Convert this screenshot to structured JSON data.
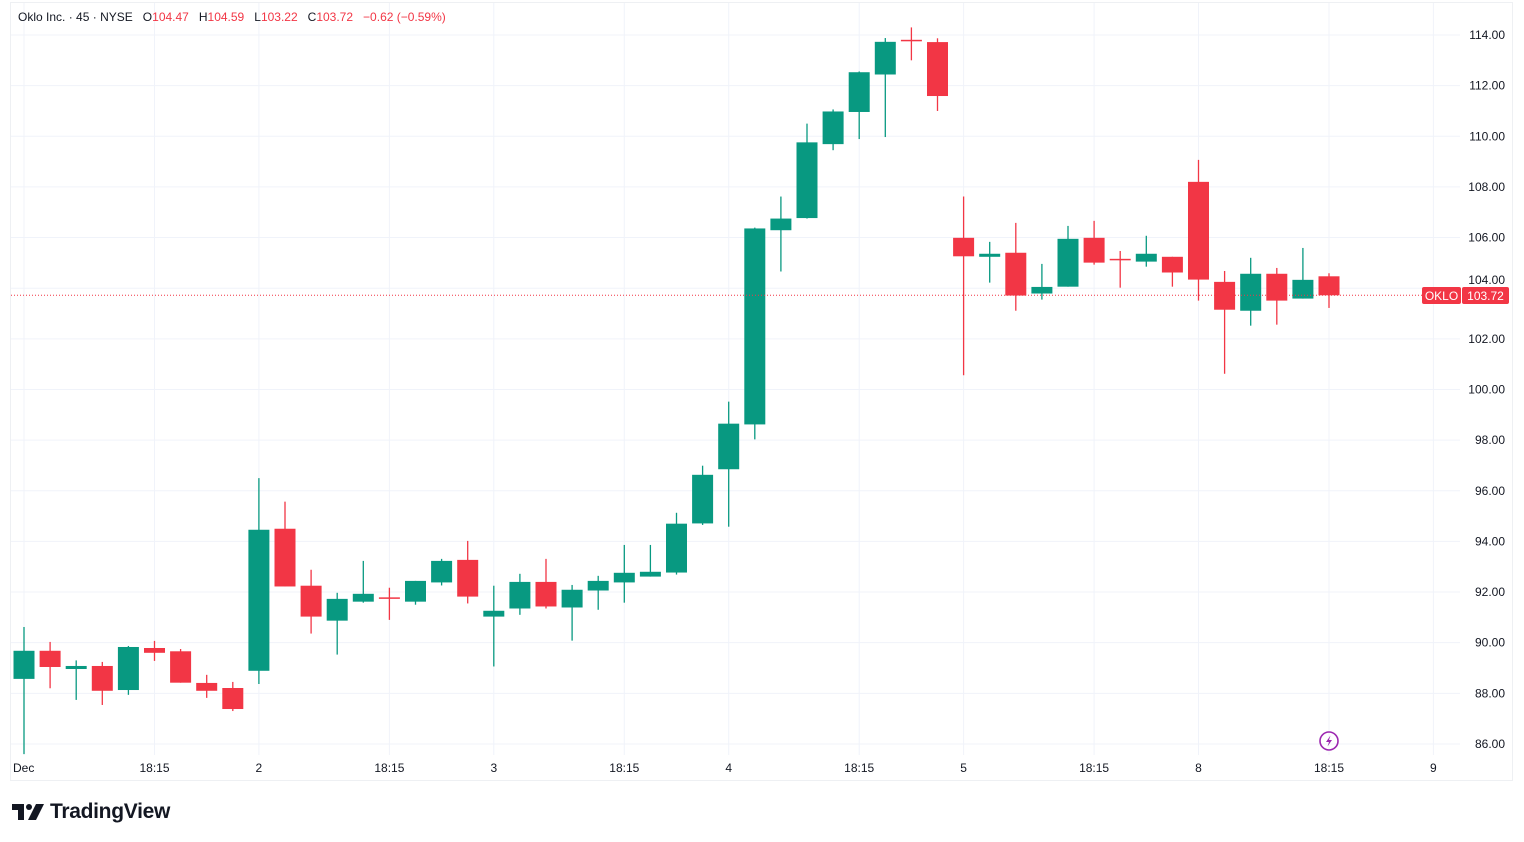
{
  "legend": {
    "name": "Oklo Inc.",
    "interval": "45",
    "exchange": "NYSE",
    "open_label": "O",
    "open": "104.47",
    "high_label": "H",
    "high": "104.59",
    "low_label": "L",
    "low": "103.22",
    "close_label": "C",
    "close": "103.72",
    "change": "−0.62 (−0.59%)"
  },
  "price_tag": {
    "symbol": "OKLO",
    "price": "103.72"
  },
  "brand": {
    "name": "TradingView"
  },
  "chart_data": {
    "type": "candlestick",
    "title": "Oklo Inc. · 45 · NYSE",
    "ylim": [
      85.5,
      114.5
    ],
    "y_ticks": [
      "86.00",
      "88.00",
      "90.00",
      "92.00",
      "94.00",
      "96.00",
      "98.00",
      "100.00",
      "102.00",
      "104.00",
      "106.00",
      "108.00",
      "110.00",
      "112.00",
      "114.00"
    ],
    "x_ticks": [
      {
        "bar": 0,
        "label": "Dec"
      },
      {
        "bar": 5,
        "label": "18:15"
      },
      {
        "bar": 9,
        "label": "2"
      },
      {
        "bar": 14,
        "label": "18:15"
      },
      {
        "bar": 18,
        "label": "3"
      },
      {
        "bar": 23,
        "label": "18:15"
      },
      {
        "bar": 27,
        "label": "4"
      },
      {
        "bar": 32,
        "label": "18:15"
      },
      {
        "bar": 36,
        "label": "5"
      },
      {
        "bar": 41,
        "label": "18:15"
      },
      {
        "bar": 45,
        "label": "8"
      },
      {
        "bar": 50,
        "label": "18:15"
      },
      {
        "bar": 54,
        "label": "9"
      }
    ],
    "grid": true,
    "last_price": 103.72,
    "colors": {
      "up": "#089981",
      "down": "#F23645",
      "grid": "#f0f3fa"
    },
    "ohlc": [
      [
        88.57,
        90.62,
        85.6,
        89.68
      ],
      [
        89.68,
        90.03,
        88.2,
        89.04
      ],
      [
        88.96,
        89.3,
        87.74,
        89.08
      ],
      [
        89.08,
        89.24,
        87.54,
        88.1
      ],
      [
        88.13,
        89.87,
        87.94,
        89.83
      ],
      [
        89.79,
        90.07,
        89.28,
        89.6
      ],
      [
        89.66,
        89.75,
        88.42,
        88.42
      ],
      [
        88.41,
        88.73,
        87.82,
        88.1
      ],
      [
        88.21,
        88.45,
        87.3,
        87.38
      ],
      [
        88.89,
        96.5,
        88.37,
        94.46
      ],
      [
        94.5,
        95.57,
        92.22,
        92.22
      ],
      [
        92.25,
        92.88,
        90.36,
        91.03
      ],
      [
        90.87,
        91.97,
        89.53,
        91.73
      ],
      [
        91.62,
        93.23,
        91.58,
        91.93
      ],
      [
        91.79,
        92.17,
        90.9,
        91.75
      ],
      [
        91.62,
        92.44,
        91.5,
        92.44
      ],
      [
        92.38,
        93.31,
        92.26,
        93.23
      ],
      [
        93.27,
        94.02,
        91.55,
        91.82
      ],
      [
        91.03,
        92.25,
        89.06,
        91.26
      ],
      [
        91.35,
        92.72,
        91.1,
        92.4
      ],
      [
        92.4,
        93.31,
        91.35,
        91.43
      ],
      [
        91.39,
        92.28,
        90.08,
        92.09
      ],
      [
        92.06,
        92.64,
        91.3,
        92.44
      ],
      [
        92.38,
        93.86,
        91.58,
        92.76
      ],
      [
        92.61,
        93.86,
        92.61,
        92.8
      ],
      [
        92.77,
        95.13,
        92.69,
        94.7
      ],
      [
        94.71,
        96.99,
        94.65,
        96.63
      ],
      [
        96.85,
        99.52,
        94.58,
        98.65
      ],
      [
        98.62,
        106.39,
        98.03,
        106.36
      ],
      [
        106.29,
        107.62,
        104.66,
        106.75
      ],
      [
        106.77,
        110.5,
        106.75,
        109.76
      ],
      [
        109.69,
        111.06,
        109.45,
        110.98
      ],
      [
        110.96,
        112.56,
        109.89,
        112.53
      ],
      [
        112.44,
        113.88,
        109.97,
        113.73
      ],
      [
        113.81,
        114.3,
        113.0,
        113.77
      ],
      [
        113.72,
        113.87,
        111.0,
        111.59
      ],
      [
        105.99,
        107.62,
        100.56,
        105.26
      ],
      [
        105.24,
        105.83,
        104.22,
        105.36
      ],
      [
        105.4,
        106.58,
        103.11,
        103.71
      ],
      [
        103.79,
        104.96,
        103.55,
        104.05
      ],
      [
        104.06,
        106.46,
        104.06,
        105.95
      ],
      [
        105.99,
        106.66,
        104.93,
        105.01
      ],
      [
        105.16,
        105.47,
        104.02,
        105.12
      ],
      [
        105.05,
        106.07,
        104.85,
        105.36
      ],
      [
        105.24,
        105.24,
        104.06,
        104.62
      ],
      [
        108.2,
        109.07,
        103.51,
        104.34
      ],
      [
        104.25,
        104.68,
        100.62,
        103.15
      ],
      [
        103.11,
        105.2,
        102.52,
        104.57
      ],
      [
        104.57,
        104.8,
        102.56,
        103.51
      ],
      [
        103.59,
        105.59,
        103.59,
        104.33
      ],
      [
        104.47,
        104.59,
        103.22,
        103.72
      ]
    ]
  }
}
